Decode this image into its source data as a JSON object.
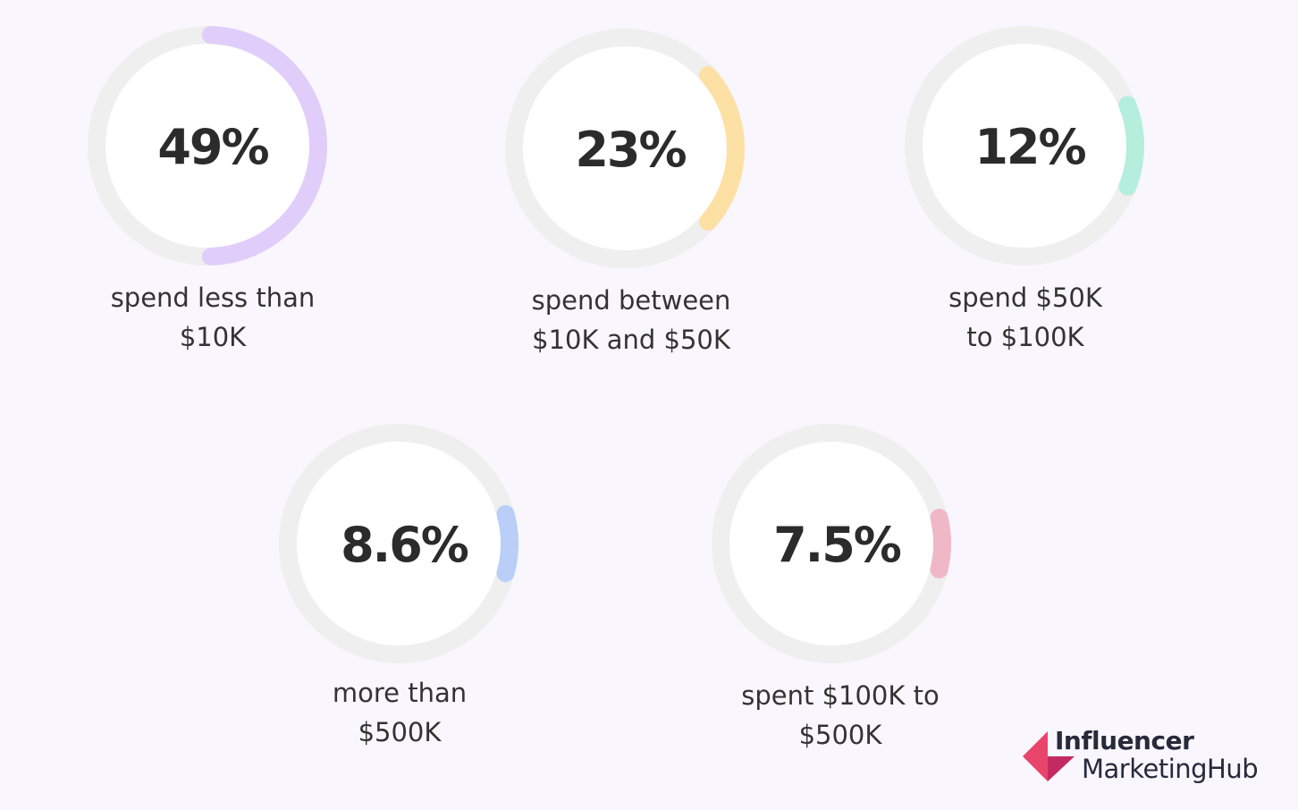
{
  "chart_data": {
    "type": "pie",
    "items": [
      {
        "value": 49,
        "value_label": "49%",
        "label_lines": [
          "spend less than",
          "$10K"
        ],
        "color": "#e1cdfa"
      },
      {
        "value": 23,
        "value_label": "23%",
        "label_lines": [
          "spend between",
          "$10K and $50K"
        ],
        "color": "#fde0a4"
      },
      {
        "value": 12,
        "value_label": "12%",
        "label_lines": [
          "spend $50K",
          "to $100K"
        ],
        "color": "#b5eedd"
      },
      {
        "value": 8.6,
        "value_label": "8.6%",
        "label_lines": [
          "more than",
          "$500K"
        ],
        "color": "#b9cff8"
      },
      {
        "value": 7.5,
        "value_label": "7.5%",
        "label_lines": [
          "spent $100K to",
          "$500K"
        ],
        "color": "#f0b8c6"
      }
    ],
    "track_color": "#efefef"
  },
  "logo": {
    "line1": "Influencer",
    "line2": "MarketingHub",
    "colors": [
      "#e9446a",
      "#c42a62"
    ]
  }
}
